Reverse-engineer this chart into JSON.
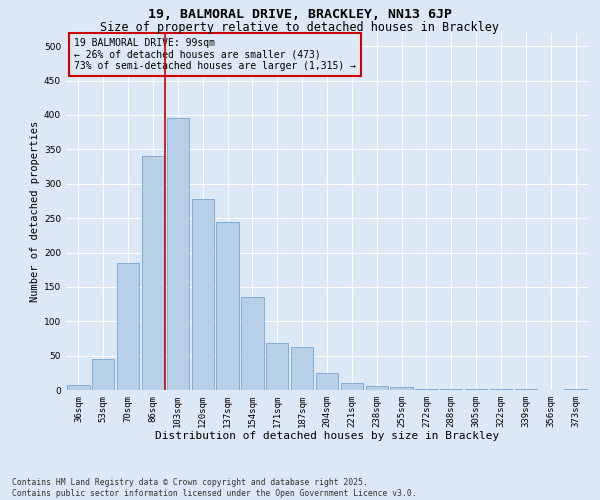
{
  "title_line1": "19, BALMORAL DRIVE, BRACKLEY, NN13 6JP",
  "title_line2": "Size of property relative to detached houses in Brackley",
  "xlabel": "Distribution of detached houses by size in Brackley",
  "ylabel": "Number of detached properties",
  "bar_color": "#b8cfe8",
  "bar_edge_color": "#6699cc",
  "background_color": "#dce8f5",
  "grid_color": "#ffffff",
  "annotation_box_color": "#cc0000",
  "vline_color": "#cc0000",
  "categories": [
    "36sqm",
    "53sqm",
    "70sqm",
    "86sqm",
    "103sqm",
    "120sqm",
    "137sqm",
    "154sqm",
    "171sqm",
    "187sqm",
    "204sqm",
    "221sqm",
    "238sqm",
    "255sqm",
    "272sqm",
    "288sqm",
    "305sqm",
    "322sqm",
    "339sqm",
    "356sqm",
    "373sqm"
  ],
  "values": [
    8,
    45,
    185,
    340,
    395,
    278,
    245,
    135,
    68,
    62,
    25,
    10,
    6,
    4,
    2,
    2,
    1,
    1,
    1,
    0,
    1
  ],
  "vline_position": 4,
  "annotation_text": "19 BALMORAL DRIVE: 99sqm\n← 26% of detached houses are smaller (473)\n73% of semi-detached houses are larger (1,315) →",
  "ylim": [
    0,
    520
  ],
  "yticks": [
    0,
    50,
    100,
    150,
    200,
    250,
    300,
    350,
    400,
    450,
    500
  ],
  "footer_text": "Contains HM Land Registry data © Crown copyright and database right 2025.\nContains public sector information licensed under the Open Government Licence v3.0.",
  "title_fontsize": 9.5,
  "subtitle_fontsize": 8.5,
  "axis_label_fontsize": 8,
  "tick_fontsize": 6.5,
  "annotation_fontsize": 7,
  "ylabel_fontsize": 7.5
}
